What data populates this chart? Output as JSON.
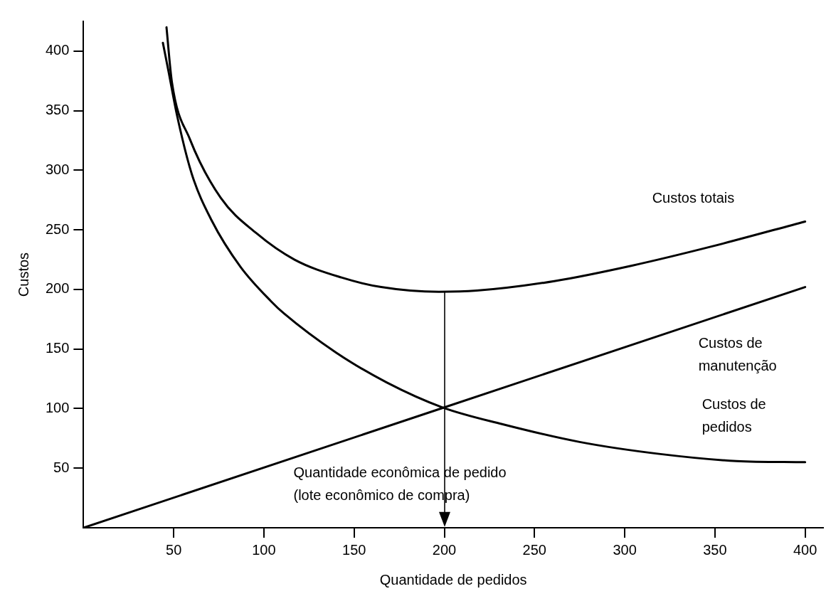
{
  "chart_data": {
    "type": "line",
    "xlabel": "Quantidade de pedidos",
    "ylabel": "Custos",
    "xlim": [
      0,
      410
    ],
    "xticks": [
      50,
      100,
      150,
      200,
      250,
      300,
      350,
      400
    ],
    "ylim": [
      0,
      425
    ],
    "yticks": [
      50,
      100,
      150,
      200,
      250,
      300,
      350,
      400
    ],
    "grid": false,
    "legend": false,
    "marker": "none",
    "line_style": "solid",
    "series": [
      {
        "name": "Custos totais",
        "color": "#000000",
        "x": [
          46,
          49,
          59,
          76,
          96,
          117,
          143,
          165,
          197,
          218,
          261,
          304,
          348,
          400
        ],
        "values": [
          420,
          374,
          326,
          277,
          247,
          225,
          210,
          202,
          198,
          199,
          207,
          220,
          236,
          257
        ]
      },
      {
        "name": "Custos de\nmanutenção",
        "color": "#000000",
        "x": [
          0,
          400
        ],
        "values": [
          0,
          202
        ]
      },
      {
        "name": "Custos de\npedidos",
        "color": "#000000",
        "x": [
          44,
          47,
          52,
          60,
          71,
          87,
          104,
          111,
          140,
          168,
          199,
          232,
          275,
          319,
          362,
          400
        ],
        "values": [
          407,
          384,
          345,
          297,
          258,
          219,
          190,
          180,
          147,
          122,
          101,
          87,
          72,
          62,
          56,
          55
        ]
      }
    ],
    "annotations": [
      {
        "text": "Quantidade econômica de pedido\n(lote econômico de compra)",
        "x": 200,
        "y": 198
      }
    ]
  }
}
